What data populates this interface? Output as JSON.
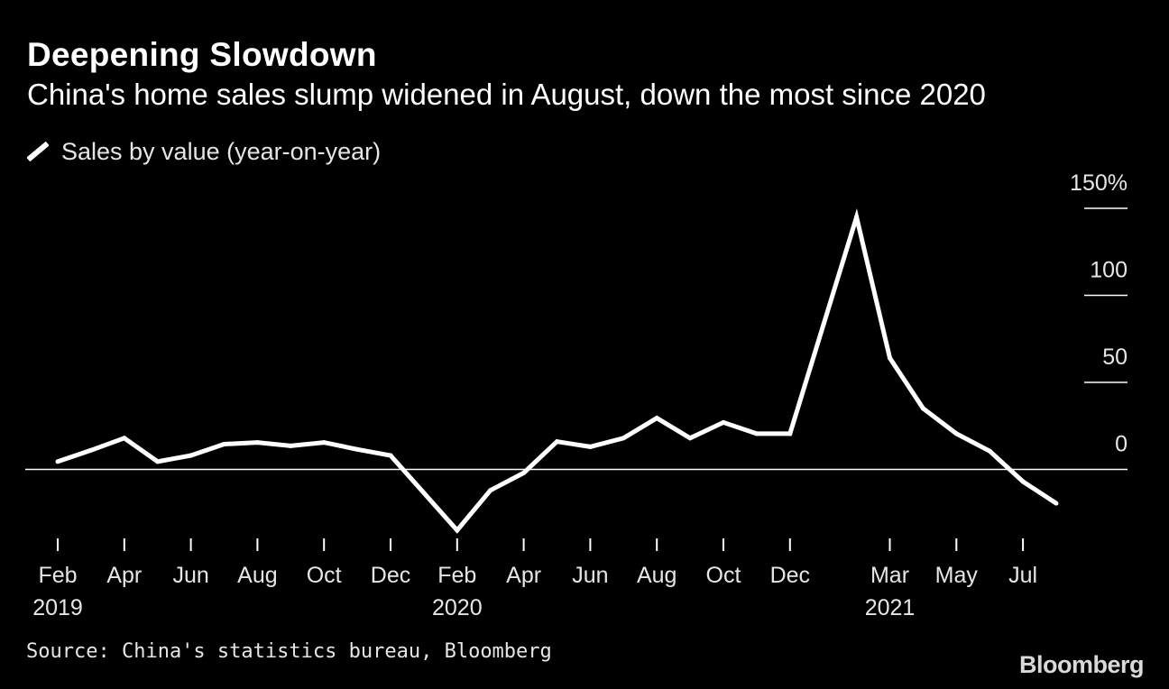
{
  "chart_data": {
    "type": "line",
    "title": "Deepening Slowdown",
    "subtitle": "China's home sales slump widened in August, down the most since 2020",
    "legend": [
      {
        "name": "Sales by value (year-on-year)",
        "color": "#ffffff"
      }
    ],
    "ylim": [
      -40,
      150
    ],
    "y_ticks": [
      {
        "value": 150,
        "label": "150%"
      },
      {
        "value": 100,
        "label": "100"
      },
      {
        "value": 50,
        "label": "50"
      },
      {
        "value": 0,
        "label": "0"
      }
    ],
    "x_ticks": [
      {
        "index": 0,
        "label": "Feb",
        "year": "2019"
      },
      {
        "index": 2,
        "label": "Apr",
        "year": ""
      },
      {
        "index": 4,
        "label": "Jun",
        "year": ""
      },
      {
        "index": 6,
        "label": "Aug",
        "year": ""
      },
      {
        "index": 8,
        "label": "Oct",
        "year": ""
      },
      {
        "index": 10,
        "label": "Dec",
        "year": ""
      },
      {
        "index": 12,
        "label": "Feb",
        "year": "2020"
      },
      {
        "index": 14,
        "label": "Apr",
        "year": ""
      },
      {
        "index": 16,
        "label": "Jun",
        "year": ""
      },
      {
        "index": 18,
        "label": "Aug",
        "year": ""
      },
      {
        "index": 20,
        "label": "Oct",
        "year": ""
      },
      {
        "index": 22,
        "label": "Dec",
        "year": ""
      },
      {
        "index": 25,
        "label": "Mar",
        "year": "2021"
      },
      {
        "index": 27,
        "label": "May",
        "year": ""
      },
      {
        "index": 29,
        "label": "Jul",
        "year": ""
      }
    ],
    "series": [
      {
        "name": "Sales by value (year-on-year)",
        "values": [
          {
            "index": 0,
            "value": 4.5
          },
          {
            "index": 1,
            "value": 11
          },
          {
            "index": 2,
            "value": 18
          },
          {
            "index": 3,
            "value": 4.5
          },
          {
            "index": 4,
            "value": 8
          },
          {
            "index": 5,
            "value": 14.5
          },
          {
            "index": 6,
            "value": 15.5
          },
          {
            "index": 7,
            "value": 13.5
          },
          {
            "index": 8,
            "value": 15.5
          },
          {
            "index": 9,
            "value": 11.5
          },
          {
            "index": 10,
            "value": 8
          },
          {
            "index": 12,
            "value": -35
          },
          {
            "index": 13,
            "value": -12
          },
          {
            "index": 14,
            "value": -2
          },
          {
            "index": 15,
            "value": 16
          },
          {
            "index": 16,
            "value": 13
          },
          {
            "index": 17,
            "value": 18
          },
          {
            "index": 18,
            "value": 29.5
          },
          {
            "index": 19,
            "value": 18
          },
          {
            "index": 20,
            "value": 27
          },
          {
            "index": 21,
            "value": 20.5
          },
          {
            "index": 22,
            "value": 20.5
          },
          {
            "index": 24,
            "value": 145
          },
          {
            "index": 25,
            "value": 64
          },
          {
            "index": 26,
            "value": 35
          },
          {
            "index": 27,
            "value": 20.5
          },
          {
            "index": 28,
            "value": 10.5
          },
          {
            "index": 29,
            "value": -7
          },
          {
            "index": 30,
            "value": -19.5
          }
        ]
      }
    ]
  },
  "header": {
    "title": "Deepening Slowdown",
    "subtitle": "China's home sales slump widened in August, down the most since 2020"
  },
  "legend": {
    "label": "Sales by value (year-on-year)"
  },
  "footer": {
    "source": "Source: China's statistics bureau, Bloomberg",
    "brand": "Bloomberg"
  },
  "colors": {
    "background": "#000000",
    "line": "#ffffff",
    "text": "#ffffff"
  }
}
